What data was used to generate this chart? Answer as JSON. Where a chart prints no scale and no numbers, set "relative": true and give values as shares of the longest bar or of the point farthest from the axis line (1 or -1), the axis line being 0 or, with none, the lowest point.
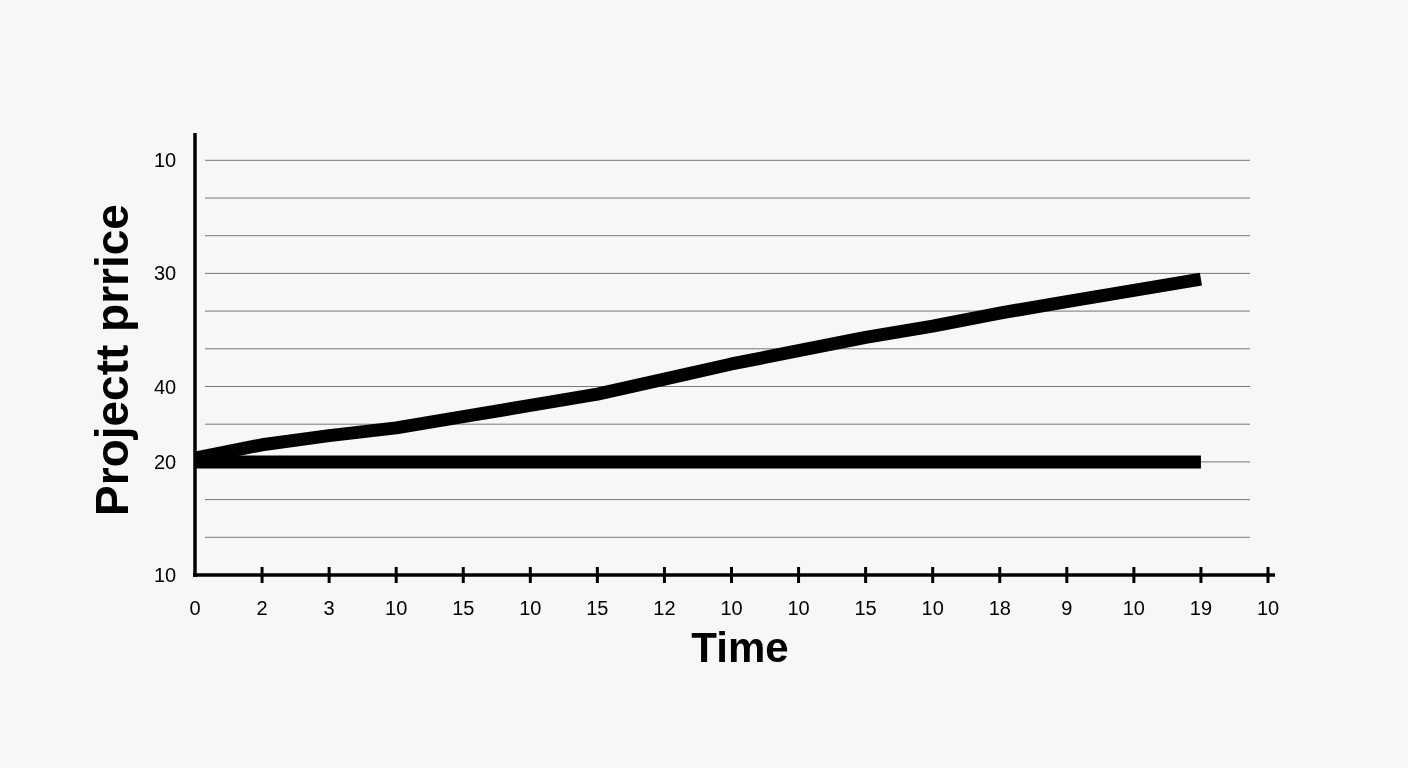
{
  "chart_data": {
    "type": "line",
    "xlabel": "Time",
    "ylabel": "Projectt prrice",
    "relative": true,
    "categories": [
      "0",
      "2",
      "3",
      "10",
      "15",
      "10",
      "15",
      "12",
      "10",
      "10",
      "15",
      "10",
      "18",
      "9",
      "10",
      "19",
      "10"
    ],
    "annotations": [
      "10",
      "30",
      "40",
      "20",
      "10"
    ],
    "grid": "y",
    "line_style": "solid",
    "marker": "none",
    "series": [
      {
        "color": "#000000",
        "values": [
          0.395,
          0.44,
          0.471,
          0.497,
          0.535,
          0.573,
          0.611,
          0.662,
          0.713,
          0.758,
          0.803,
          0.841,
          0.885,
          0.924,
          0.962,
          1,
          null
        ]
      },
      {
        "color": "#000000",
        "values": [
          0.382,
          0.382,
          0.382,
          0.382,
          0.382,
          0.382,
          0.382,
          0.382,
          0.382,
          0.382,
          0.382,
          0.382,
          0.382,
          0.382,
          0.382,
          0.382,
          null
        ]
      }
    ]
  }
}
